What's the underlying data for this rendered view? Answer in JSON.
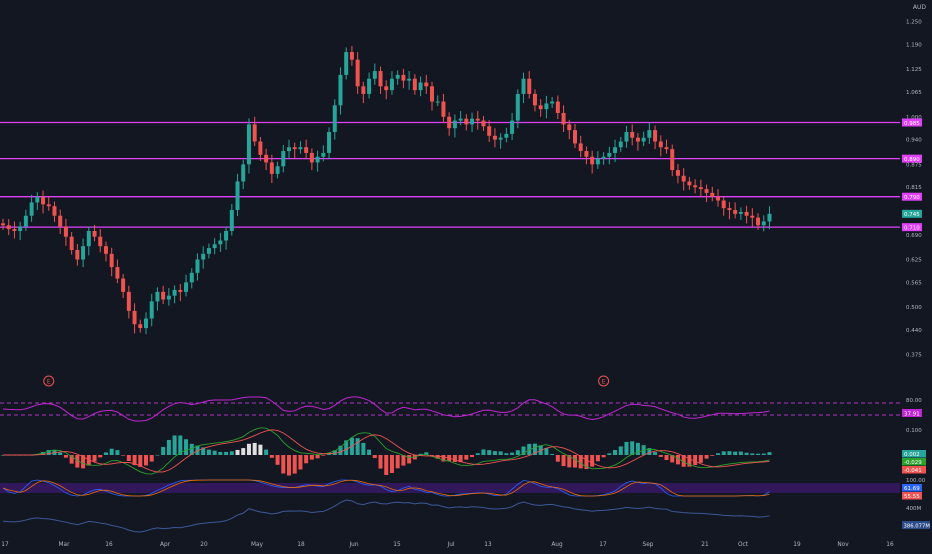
{
  "currency": "AUD",
  "colors": {
    "background": "#131722",
    "up": "#26a69a",
    "down": "#ef5350",
    "level_line": "#e040fb",
    "rsi_line": "#c026d3",
    "macd_line": "#2ca02c",
    "signal_line": "#ef5350",
    "stoch_k": "#2962ff",
    "stoch_d": "#ef6c00",
    "volume_line": "#3b5998",
    "axis_text": "#b2b5be"
  },
  "chart_data": {
    "type": "candlestick",
    "title": "",
    "x_tick_labels": [
      "17",
      "Mar",
      "16",
      "Apr",
      "20",
      "May",
      "18",
      "Jun",
      "15",
      "Jul",
      "13",
      "Aug",
      "17",
      "Sep",
      "21",
      "Oct",
      "19",
      "Nov",
      "16"
    ],
    "price_axis": {
      "tick_labels": [
        "1.250",
        "1.190",
        "1.125",
        "1.065",
        "1.000",
        "0.940",
        "0.875",
        "0.815",
        "0.750",
        "0.690",
        "0.625",
        "0.565",
        "0.500",
        "0.440",
        "0.375"
      ],
      "ylim": [
        0.34,
        1.27
      ]
    },
    "price_levels": [
      {
        "value": 0.985,
        "label": "0.985"
      },
      {
        "value": 0.89,
        "label": "0.890"
      },
      {
        "value": 0.79,
        "label": "0.790"
      },
      {
        "value": 0.71,
        "label": "0.710"
      }
    ],
    "last_price_label": "0.745",
    "event_markers": [
      {
        "label": "E",
        "index": 8
      },
      {
        "label": "E",
        "index": 105
      }
    ],
    "closes": [
      0.715,
      0.705,
      0.7,
      0.712,
      0.74,
      0.775,
      0.79,
      0.77,
      0.765,
      0.74,
      0.712,
      0.685,
      0.65,
      0.625,
      0.66,
      0.7,
      0.685,
      0.66,
      0.64,
      0.605,
      0.575,
      0.54,
      0.49,
      0.455,
      0.445,
      0.47,
      0.515,
      0.54,
      0.52,
      0.53,
      0.545,
      0.54,
      0.565,
      0.59,
      0.625,
      0.64,
      0.655,
      0.665,
      0.675,
      0.7,
      0.755,
      0.83,
      0.875,
      0.98,
      0.935,
      0.9,
      0.88,
      0.85,
      0.87,
      0.91,
      0.92,
      0.915,
      0.92,
      0.905,
      0.88,
      0.895,
      0.905,
      0.96,
      1.03,
      1.11,
      1.17,
      1.15,
      1.08,
      1.06,
      1.1,
      1.12,
      1.08,
      1.07,
      1.1,
      1.11,
      1.095,
      1.1,
      1.07,
      1.09,
      1.08,
      1.04,
      1.04,
      1.0,
      0.97,
      0.99,
      0.995,
      0.98,
      0.995,
      0.99,
      0.975,
      0.95,
      0.94,
      0.945,
      0.955,
      0.99,
      1.06,
      1.1,
      1.06,
      1.03,
      1.02,
      1.035,
      1.04,
      1.01,
      0.98,
      0.965,
      0.93,
      0.91,
      0.895,
      0.875,
      0.89,
      0.895,
      0.905,
      0.92,
      0.935,
      0.96,
      0.945,
      0.935,
      0.945,
      0.965,
      0.935,
      0.92,
      0.915,
      0.86,
      0.845,
      0.83,
      0.82,
      0.815,
      0.81,
      0.8,
      0.79,
      0.78,
      0.76,
      0.755,
      0.745,
      0.75,
      0.74,
      0.735,
      0.715,
      0.725,
      0.745
    ],
    "panes": [
      {
        "name": "rsi",
        "levels": [
          70,
          30
        ],
        "last_label": "37.91",
        "tick_labels": [
          "80.00",
          "0.100"
        ]
      },
      {
        "name": "macd",
        "last_labels": [
          "0.002",
          "-0.029",
          "-0.041"
        ]
      },
      {
        "name": "stochastic",
        "last_labels": [
          "61.69",
          "55.55"
        ],
        "tick_labels": [
          "100.00"
        ]
      },
      {
        "name": "volume",
        "last_label": "386.077M",
        "tick_labels": [
          "400M"
        ]
      }
    ]
  }
}
